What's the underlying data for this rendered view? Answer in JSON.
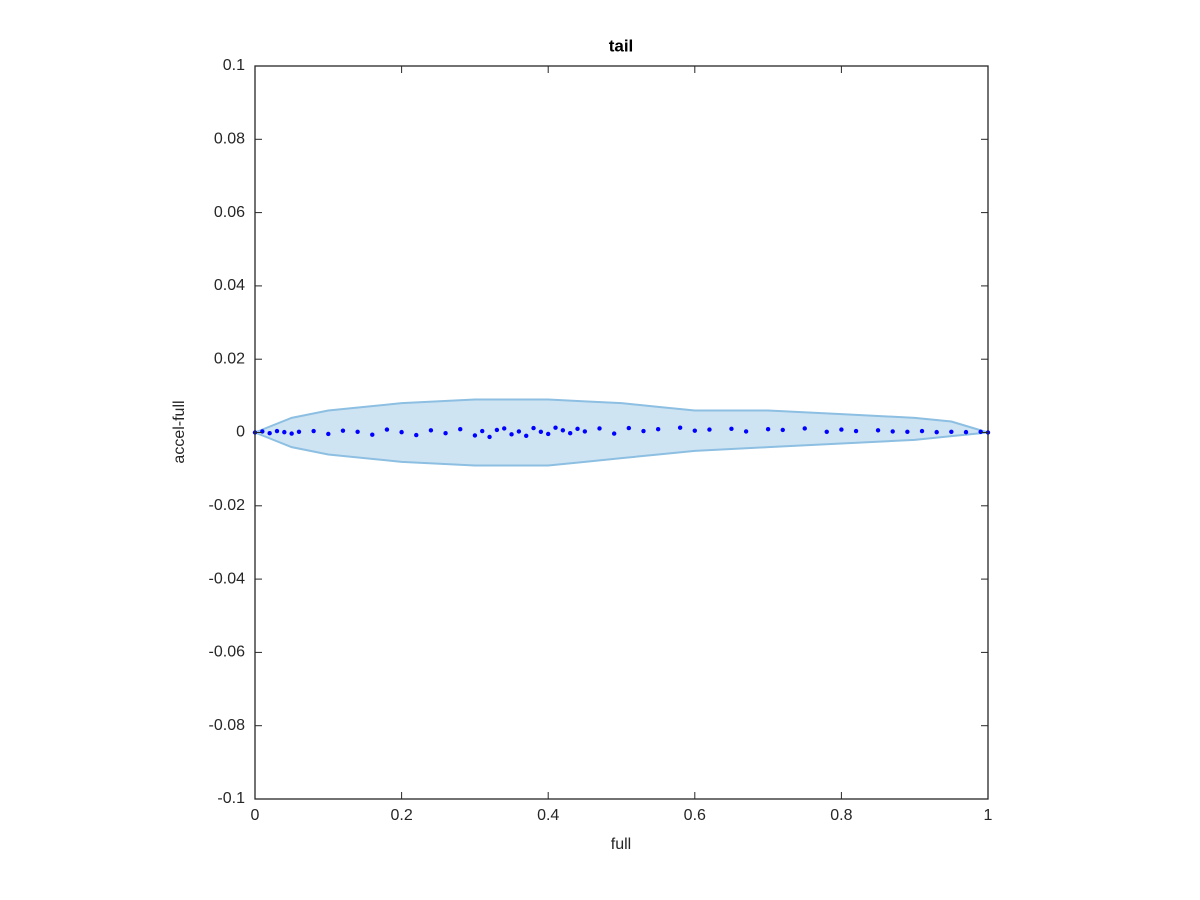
{
  "chart_data": {
    "type": "scatter",
    "title": "tail",
    "x_label": "full",
    "y_label": "accel-full",
    "xlim": [
      0,
      1
    ],
    "ylim": [
      -0.1,
      0.1
    ],
    "xticks": [
      0,
      0.2,
      0.4,
      0.6,
      0.8,
      1
    ],
    "yticks": [
      -0.1,
      -0.08,
      -0.06,
      -0.04,
      -0.02,
      0,
      0.02,
      0.04,
      0.06,
      0.08,
      0.1
    ],
    "band": {
      "color": "#cfe4f3",
      "edge_color": "#8cbfe2",
      "x": [
        0,
        0.05,
        0.1,
        0.2,
        0.3,
        0.4,
        0.45,
        0.5,
        0.55,
        0.6,
        0.7,
        0.8,
        0.9,
        0.95,
        1
      ],
      "upper": [
        0,
        0.004,
        0.006,
        0.008,
        0.009,
        0.009,
        0.0085,
        0.008,
        0.007,
        0.006,
        0.006,
        0.005,
        0.004,
        0.003,
        0
      ],
      "lower": [
        0,
        -0.004,
        -0.006,
        -0.008,
        -0.009,
        -0.009,
        -0.008,
        -0.007,
        -0.006,
        -0.005,
        -0.004,
        -0.003,
        -0.002,
        -0.001,
        0
      ]
    },
    "points": {
      "color": "#0000ff",
      "x": [
        0,
        0.01,
        0.02,
        0.03,
        0.04,
        0.05,
        0.06,
        0.08,
        0.1,
        0.12,
        0.14,
        0.16,
        0.18,
        0.2,
        0.22,
        0.24,
        0.26,
        0.28,
        0.3,
        0.31,
        0.32,
        0.33,
        0.34,
        0.35,
        0.36,
        0.37,
        0.38,
        0.39,
        0.4,
        0.41,
        0.42,
        0.43,
        0.44,
        0.45,
        0.47,
        0.49,
        0.51,
        0.53,
        0.55,
        0.58,
        0.6,
        0.62,
        0.65,
        0.67,
        0.7,
        0.72,
        0.75,
        0.78,
        0.8,
        0.82,
        0.85,
        0.87,
        0.89,
        0.91,
        0.93,
        0.95,
        0.97,
        0.99,
        1
      ],
      "y": [
        0,
        0.0003,
        -0.0002,
        0.0004,
        0.0001,
        -0.0003,
        0.0002,
        0.0004,
        -0.0004,
        0.0005,
        0.0002,
        -0.0006,
        0.0008,
        0.0001,
        -0.0007,
        0.0006,
        -0.0002,
        0.0009,
        -0.0008,
        0.0004,
        -0.0012,
        0.0007,
        0.0011,
        -0.0005,
        0.0003,
        -0.0009,
        0.0012,
        0.0002,
        -0.0004,
        0.0013,
        0.0006,
        -0.0002,
        0.001,
        0.0003,
        0.0011,
        -0.0003,
        0.0012,
        0.0004,
        0.0009,
        0.0013,
        0.0005,
        0.0008,
        0.001,
        0.0003,
        0.0009,
        0.0007,
        0.0011,
        0.0002,
        0.0008,
        0.0004,
        0.0006,
        0.0003,
        0.0002,
        0.0004,
        0.0001,
        0.0002,
        0.0001,
        0.0002,
        0
      ]
    }
  }
}
